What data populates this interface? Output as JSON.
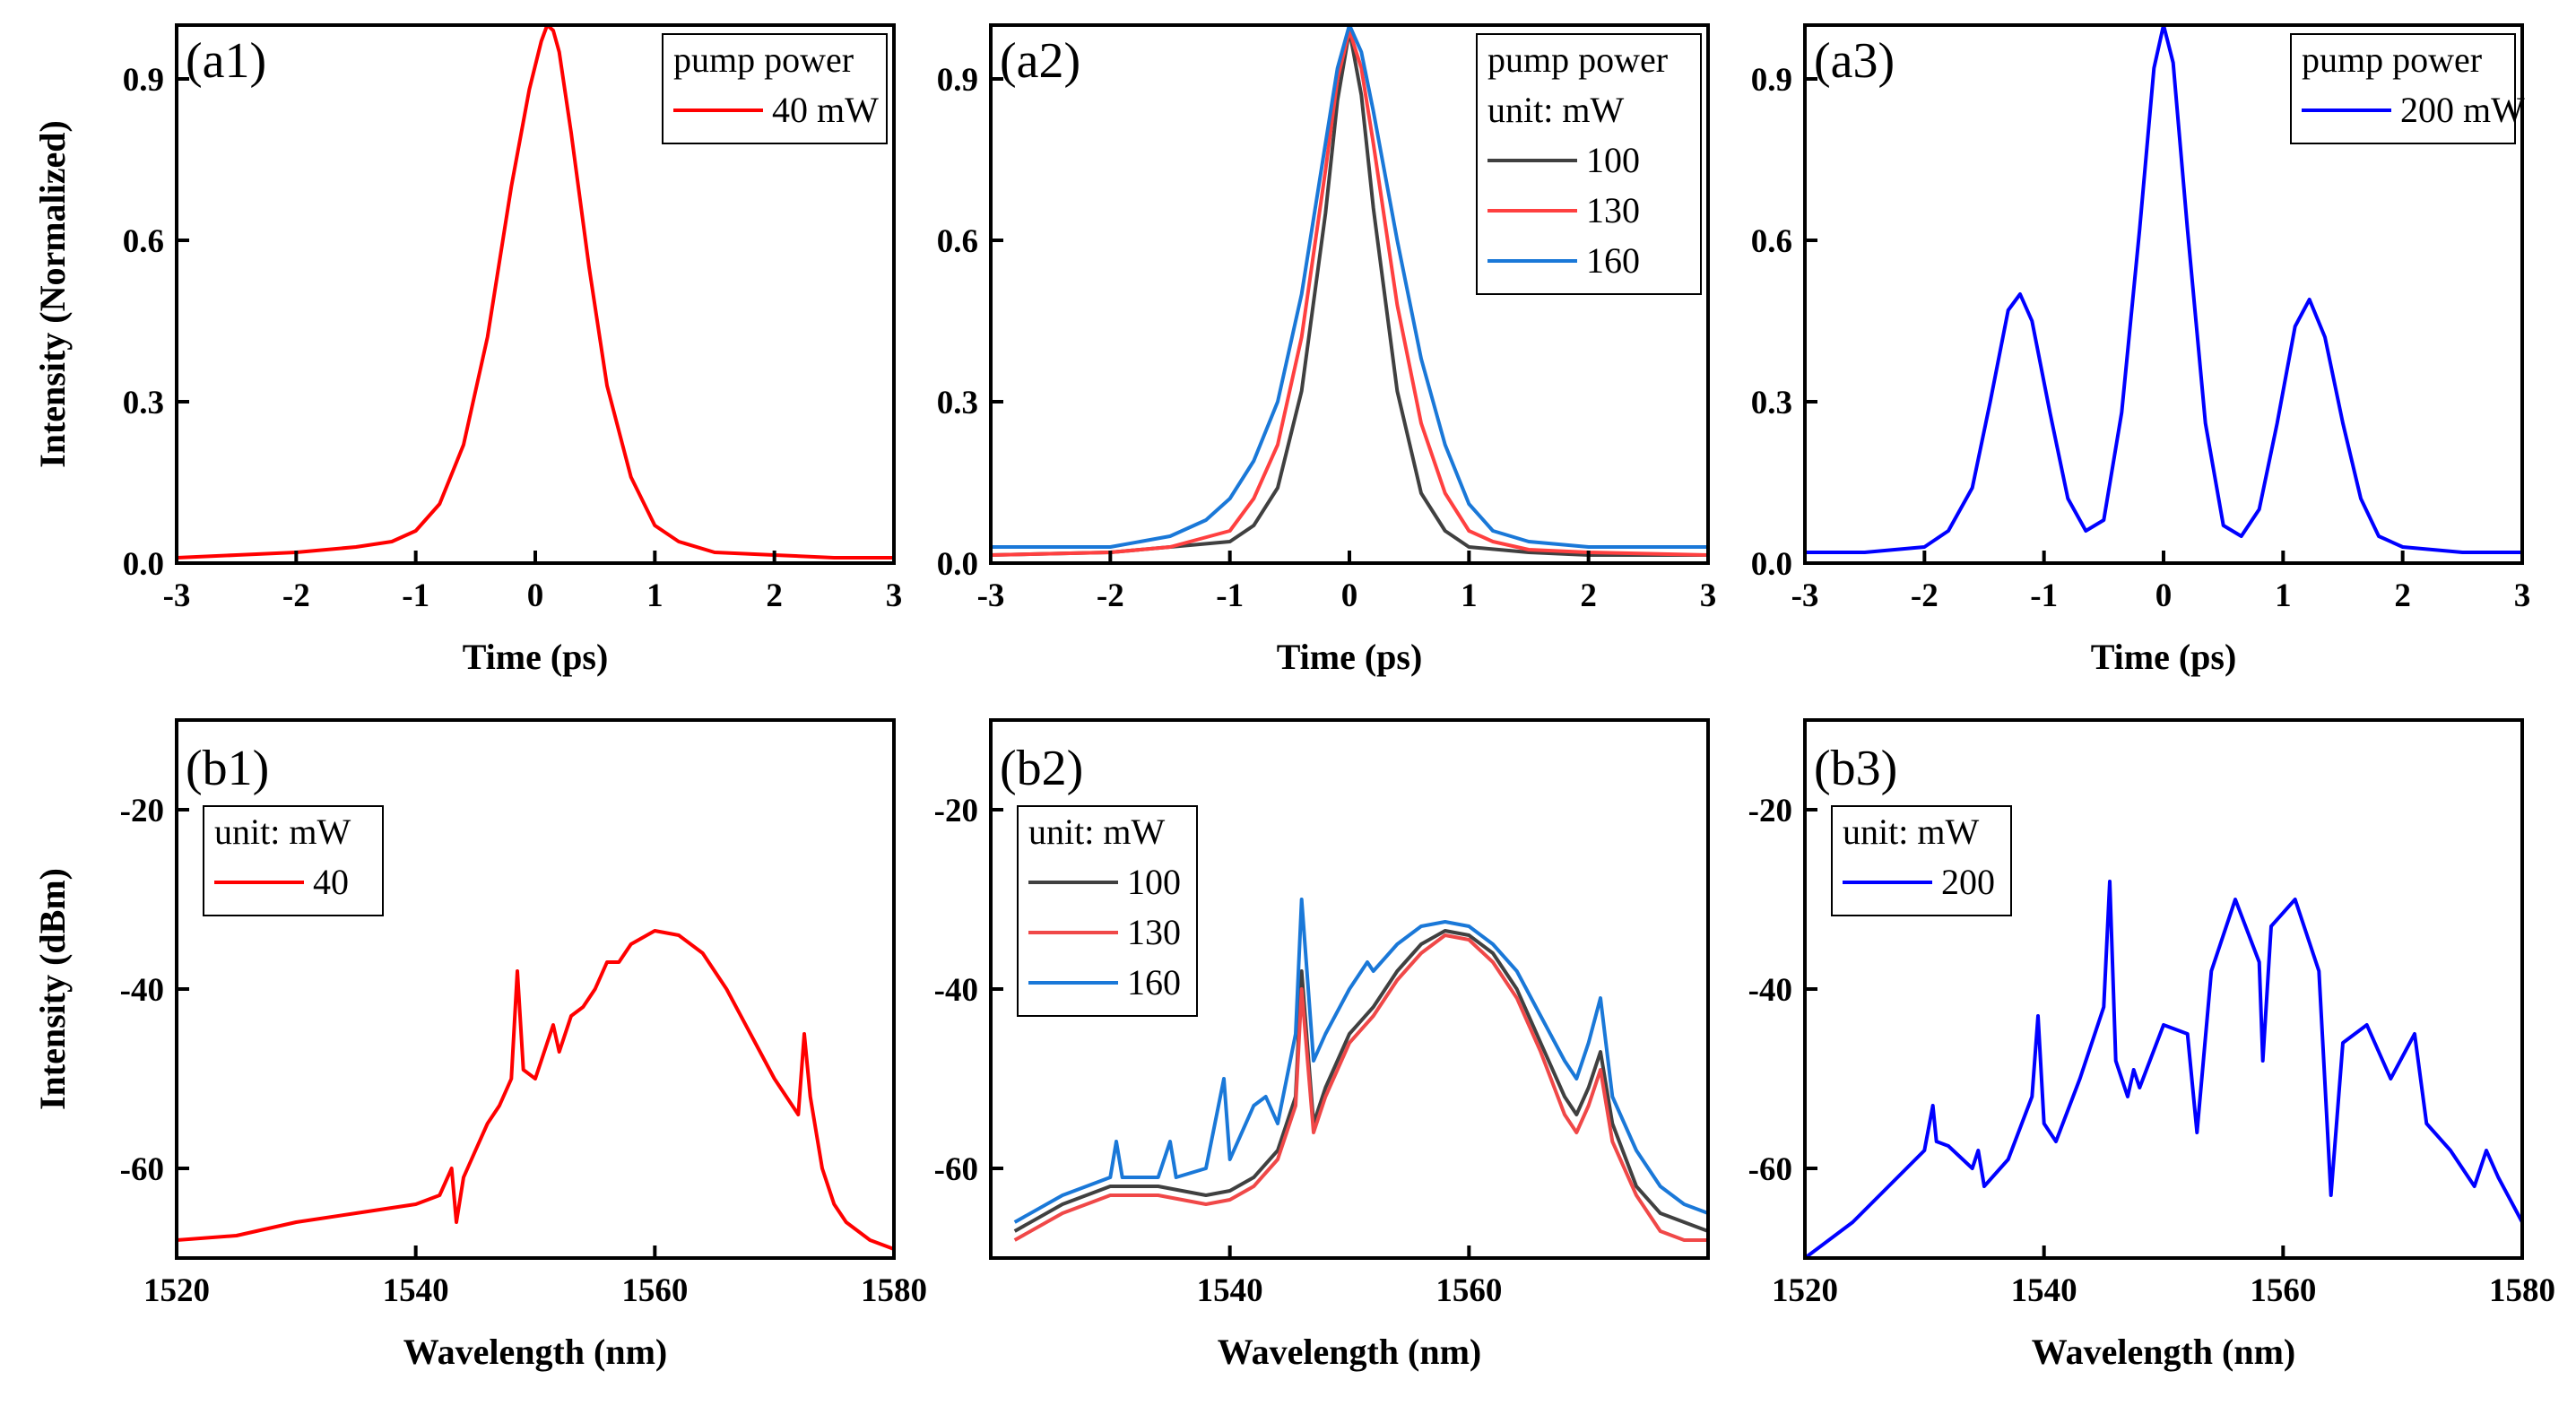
{
  "chart_data": [
    {
      "id": "a1",
      "panel_label": "(a1)",
      "type": "line",
      "xlabel": "Time (ps)",
      "ylabel": "Intensity (Normalized)",
      "xlim": [
        -3,
        3
      ],
      "ylim": [
        0,
        1.0
      ],
      "xticks": [
        -3,
        -2,
        -1,
        0,
        1,
        2,
        3
      ],
      "xtick_labels": [
        "-3",
        "-2",
        "-1",
        "0",
        "1",
        "2",
        "3"
      ],
      "yticks": [
        0,
        0.3,
        0.6,
        0.9
      ],
      "ytick_labels": [
        "0.0",
        "0.3",
        "0.6",
        "0.9"
      ],
      "legend": {
        "title": [
          "pump power"
        ],
        "placement": "top-right"
      },
      "series": [
        {
          "name": "40 mW",
          "color": "#ff0000",
          "label": "40 mW",
          "x": [
            -3,
            -2.5,
            -2,
            -1.5,
            -1.2,
            -1,
            -0.8,
            -0.6,
            -0.4,
            -0.2,
            -0.05,
            0.05,
            0.1,
            0.15,
            0.2,
            0.3,
            0.45,
            0.6,
            0.8,
            1.0,
            1.2,
            1.5,
            2,
            2.5,
            3
          ],
          "y": [
            0.01,
            0.015,
            0.02,
            0.03,
            0.04,
            0.06,
            0.11,
            0.22,
            0.42,
            0.7,
            0.88,
            0.97,
            1.0,
            0.99,
            0.95,
            0.8,
            0.55,
            0.33,
            0.16,
            0.07,
            0.04,
            0.02,
            0.015,
            0.01,
            0.01
          ]
        }
      ]
    },
    {
      "id": "a2",
      "panel_label": "(a2)",
      "type": "line",
      "xlabel": "Time (ps)",
      "ylabel": "",
      "xlim": [
        -3,
        3
      ],
      "ylim": [
        0,
        1.0
      ],
      "xticks": [
        -3,
        -2,
        -1,
        0,
        1,
        2,
        3
      ],
      "xtick_labels": [
        "-3",
        "-2",
        "-1",
        "0",
        "1",
        "2",
        "3"
      ],
      "yticks": [
        0,
        0.3,
        0.6,
        0.9
      ],
      "ytick_labels": [
        "0.0",
        "0.3",
        "0.6",
        "0.9"
      ],
      "legend": {
        "title": [
          "pump power",
          "unit: mW"
        ],
        "placement": "top-right"
      },
      "series": [
        {
          "name": "100",
          "color": "#404040",
          "label": "100",
          "x": [
            -3,
            -2,
            -1.5,
            -1,
            -0.8,
            -0.6,
            -0.4,
            -0.2,
            -0.1,
            0,
            0.1,
            0.2,
            0.4,
            0.6,
            0.8,
            1.0,
            1.5,
            2,
            3
          ],
          "y": [
            0.015,
            0.02,
            0.03,
            0.04,
            0.07,
            0.14,
            0.32,
            0.65,
            0.86,
            0.99,
            0.87,
            0.66,
            0.32,
            0.13,
            0.06,
            0.03,
            0.02,
            0.015,
            0.015
          ]
        },
        {
          "name": "130",
          "color": "#ff4040",
          "label": "130",
          "x": [
            -3,
            -2,
            -1.5,
            -1,
            -0.8,
            -0.6,
            -0.4,
            -0.2,
            -0.1,
            0,
            0.1,
            0.2,
            0.4,
            0.6,
            0.8,
            1.0,
            1.2,
            1.5,
            2,
            3
          ],
          "y": [
            0.015,
            0.02,
            0.03,
            0.06,
            0.12,
            0.22,
            0.42,
            0.73,
            0.9,
            0.99,
            0.92,
            0.78,
            0.48,
            0.26,
            0.13,
            0.06,
            0.04,
            0.025,
            0.02,
            0.015
          ]
        },
        {
          "name": "160",
          "color": "#1a78d8",
          "label": "160",
          "x": [
            -3,
            -2,
            -1.5,
            -1.2,
            -1,
            -0.8,
            -0.6,
            -0.4,
            -0.2,
            -0.1,
            0,
            0.1,
            0.2,
            0.4,
            0.6,
            0.8,
            1.0,
            1.2,
            1.5,
            2,
            3
          ],
          "y": [
            0.03,
            0.03,
            0.05,
            0.08,
            0.12,
            0.19,
            0.3,
            0.5,
            0.78,
            0.92,
            1.0,
            0.95,
            0.84,
            0.6,
            0.38,
            0.22,
            0.11,
            0.06,
            0.04,
            0.03,
            0.03
          ]
        }
      ]
    },
    {
      "id": "a3",
      "panel_label": "(a3)",
      "type": "line",
      "xlabel": "Time (ps)",
      "ylabel": "",
      "xlim": [
        -3,
        3
      ],
      "ylim": [
        0,
        1.0
      ],
      "xticks": [
        -3,
        -2,
        -1,
        0,
        1,
        2,
        3
      ],
      "xtick_labels": [
        "-3",
        "-2",
        "-1",
        "0",
        "1",
        "2",
        "3"
      ],
      "yticks": [
        0,
        0.3,
        0.6,
        0.9
      ],
      "ytick_labels": [
        "0.0",
        "0.3",
        "0.6",
        "0.9"
      ],
      "legend": {
        "title": [
          "pump power"
        ],
        "placement": "top-right"
      },
      "series": [
        {
          "name": "200 mW",
          "color": "#0000ff",
          "label": "200 mW",
          "x": [
            -3,
            -2.5,
            -2,
            -1.8,
            -1.6,
            -1.45,
            -1.3,
            -1.2,
            -1.1,
            -0.95,
            -0.8,
            -0.65,
            -0.5,
            -0.35,
            -0.2,
            -0.08,
            0,
            0.08,
            0.2,
            0.35,
            0.5,
            0.65,
            0.8,
            0.95,
            1.1,
            1.22,
            1.35,
            1.5,
            1.65,
            1.8,
            2,
            2.5,
            3
          ],
          "y": [
            0.02,
            0.02,
            0.03,
            0.06,
            0.14,
            0.3,
            0.47,
            0.5,
            0.45,
            0.28,
            0.12,
            0.06,
            0.08,
            0.28,
            0.62,
            0.92,
            1.0,
            0.93,
            0.62,
            0.26,
            0.07,
            0.05,
            0.1,
            0.26,
            0.44,
            0.49,
            0.42,
            0.26,
            0.12,
            0.05,
            0.03,
            0.02,
            0.02
          ]
        }
      ]
    },
    {
      "id": "b1",
      "panel_label": "(b1)",
      "type": "line",
      "xlabel": "Wavelength (nm)",
      "ylabel": "Intensity (dBm)",
      "xlim": [
        1520,
        1580
      ],
      "ylim": [
        -70,
        -10
      ],
      "xticks": [
        1520,
        1540,
        1560,
        1580
      ],
      "xtick_labels": [
        "1520",
        "1540",
        "1560",
        "1580"
      ],
      "yticks": [
        -60,
        -40,
        -20
      ],
      "ytick_labels": [
        "-60",
        "-40",
        "-20"
      ],
      "legend": {
        "title": [
          "unit: mW"
        ],
        "placement": "top-left"
      },
      "series": [
        {
          "name": "40",
          "color": "#ff0000",
          "label": "40",
          "x": [
            1520,
            1525,
            1530,
            1535,
            1540,
            1542,
            1543,
            1543.4,
            1544,
            1545,
            1546,
            1547,
            1548,
            1548.5,
            1549,
            1550,
            1551,
            1551.5,
            1552,
            1553,
            1554,
            1555,
            1556,
            1557,
            1558,
            1560,
            1562,
            1564,
            1566,
            1568,
            1570,
            1571,
            1572,
            1572.5,
            1573,
            1574,
            1575,
            1576,
            1577,
            1578,
            1580
          ],
          "y": [
            -68,
            -67.5,
            -66,
            -65,
            -64,
            -63,
            -60,
            -66,
            -61,
            -58,
            -55,
            -53,
            -50,
            -38,
            -49,
            -50,
            -46,
            -44,
            -47,
            -43,
            -42,
            -40,
            -37,
            -37,
            -35,
            -33.5,
            -34,
            -36,
            -40,
            -45,
            -50,
            -52,
            -54,
            -45,
            -52,
            -60,
            -64,
            -66,
            -67,
            -68,
            -69
          ]
        }
      ]
    },
    {
      "id": "b2",
      "panel_label": "(b2)",
      "type": "line",
      "xlabel": "Wavelength (nm)",
      "ylabel": "",
      "xlim": [
        1520,
        1580
      ],
      "ylim": [
        -70,
        -10
      ],
      "xticks": [
        1540,
        1560
      ],
      "xtick_labels": [
        "1540",
        "1560"
      ],
      "yticks": [
        -60,
        -40,
        -20
      ],
      "ytick_labels": [
        "-60",
        "-40",
        "-20"
      ],
      "legend": {
        "title": [
          "unit: mW"
        ],
        "placement": "top-left"
      },
      "series": [
        {
          "name": "100",
          "color": "#404040",
          "label": "100",
          "x": [
            1522,
            1526,
            1530,
            1534,
            1538,
            1540,
            1542,
            1544,
            1545.5,
            1546,
            1547,
            1548,
            1550,
            1552,
            1554,
            1556,
            1558,
            1560,
            1562,
            1564,
            1566,
            1568,
            1569,
            1570,
            1571,
            1572,
            1574,
            1576,
            1578,
            1580
          ],
          "y": [
            -67,
            -64,
            -62,
            -62,
            -63,
            -62.5,
            -61,
            -58,
            -52,
            -38,
            -55,
            -51,
            -45,
            -42,
            -38,
            -35,
            -33.5,
            -34,
            -36,
            -40,
            -46,
            -52,
            -54,
            -51,
            -47,
            -55,
            -62,
            -65,
            -66,
            -67
          ]
        },
        {
          "name": "130",
          "color": "#f04848",
          "label": "130",
          "x": [
            1522,
            1526,
            1530,
            1534,
            1538,
            1540,
            1542,
            1544,
            1545.5,
            1546,
            1547,
            1548,
            1550,
            1552,
            1554,
            1556,
            1558,
            1560,
            1562,
            1564,
            1566,
            1568,
            1569,
            1570,
            1571,
            1572,
            1574,
            1576,
            1578,
            1580
          ],
          "y": [
            -68,
            -65,
            -63,
            -63,
            -64,
            -63.5,
            -62,
            -59,
            -53,
            -40,
            -56,
            -52,
            -46,
            -43,
            -39,
            -36,
            -34,
            -34.5,
            -37,
            -41,
            -47,
            -54,
            -56,
            -53,
            -49,
            -57,
            -63,
            -67,
            -68,
            -68
          ]
        },
        {
          "name": "160",
          "color": "#1a78d8",
          "label": "160",
          "x": [
            1522,
            1526,
            1528,
            1530,
            1530.5,
            1531,
            1534,
            1535,
            1535.5,
            1538,
            1539.5,
            1540,
            1542,
            1543,
            1544,
            1545.5,
            1546,
            1547,
            1548,
            1550,
            1551.5,
            1552,
            1554,
            1556,
            1558,
            1560,
            1562,
            1564,
            1566,
            1568,
            1569,
            1570,
            1571,
            1572,
            1574,
            1576,
            1578,
            1580
          ],
          "y": [
            -66,
            -63,
            -62,
            -61,
            -57,
            -61,
            -61,
            -57,
            -61,
            -60,
            -50,
            -59,
            -53,
            -52,
            -55,
            -45,
            -30,
            -48,
            -45,
            -40,
            -37,
            -38,
            -35,
            -33,
            -32.5,
            -33,
            -35,
            -38,
            -43,
            -48,
            -50,
            -46,
            -41,
            -52,
            -58,
            -62,
            -64,
            -65
          ]
        }
      ]
    },
    {
      "id": "b3",
      "panel_label": "(b3)",
      "type": "line",
      "xlabel": "Wavelength (nm)",
      "ylabel": "",
      "xlim": [
        1520,
        1580
      ],
      "ylim": [
        -70,
        -10
      ],
      "xticks": [
        1520,
        1540,
        1560,
        1580
      ],
      "xtick_labels": [
        "1520",
        "1540",
        "1560",
        "1580"
      ],
      "yticks": [
        -60,
        -40,
        -20
      ],
      "ytick_labels": [
        "-60",
        "-40",
        "-20"
      ],
      "legend": {
        "title": [
          "unit: mW"
        ],
        "placement": "top-left"
      },
      "series": [
        {
          "name": "200",
          "color": "#0000ff",
          "label": "200",
          "x": [
            1520,
            1524,
            1527,
            1530,
            1530.7,
            1531,
            1532,
            1534,
            1534.5,
            1535,
            1537,
            1539,
            1539.5,
            1540,
            1541,
            1543,
            1545,
            1545.5,
            1546,
            1547,
            1547.5,
            1548,
            1550,
            1552,
            1552.8,
            1554,
            1556,
            1558,
            1558.3,
            1559,
            1561,
            1563,
            1564,
            1565,
            1567,
            1569,
            1571,
            1572,
            1574,
            1576,
            1577,
            1578,
            1580
          ],
          "y": [
            -70,
            -66,
            -62,
            -58,
            -53,
            -57,
            -57.5,
            -60,
            -58,
            -62,
            -59,
            -52,
            -43,
            -55,
            -57,
            -50,
            -42,
            -28,
            -48,
            -52,
            -49,
            -51,
            -44,
            -45,
            -56,
            -38,
            -30,
            -37,
            -48,
            -33,
            -30,
            -38,
            -63,
            -46,
            -44,
            -50,
            -45,
            -55,
            -58,
            -62,
            -58,
            -61,
            -66
          ]
        }
      ]
    }
  ]
}
